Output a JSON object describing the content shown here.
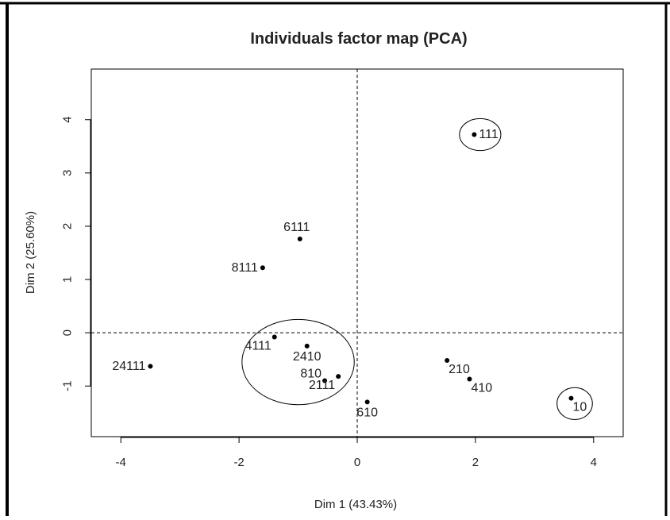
{
  "chart_data": {
    "type": "scatter",
    "title": "Individuals factor map (PCA)",
    "xlabel": "Dim 1 (43.43%)",
    "ylabel": "Dim 2 (25.60%)",
    "xlim": [
      -4.5,
      4.5
    ],
    "ylim": [
      -1.95,
      4.95
    ],
    "xticks": [
      -4,
      -2,
      0,
      2,
      4
    ],
    "yticks": [
      -1,
      0,
      1,
      2,
      3,
      4
    ],
    "grid": false,
    "reference_lines": {
      "x": 0,
      "y": 0,
      "style": "dashed"
    },
    "points": [
      {
        "label": "111",
        "x": 1.98,
        "y": 3.72,
        "label_pos": "right"
      },
      {
        "label": "6111",
        "x": -0.97,
        "y": 1.76,
        "label_pos": "above"
      },
      {
        "label": "8111",
        "x": -1.6,
        "y": 1.22,
        "label_pos": "left"
      },
      {
        "label": "4111",
        "x": -1.4,
        "y": -0.08,
        "label_pos": "below-left"
      },
      {
        "label": "2410",
        "x": -0.85,
        "y": -0.25,
        "label_pos": "below"
      },
      {
        "label": "810",
        "x": -0.55,
        "y": -0.9,
        "label_pos": "above-left"
      },
      {
        "label": "2111",
        "x": -0.32,
        "y": -0.82,
        "label_pos": "below-left"
      },
      {
        "label": "610",
        "x": 0.17,
        "y": -1.3,
        "label_pos": "below"
      },
      {
        "label": "210",
        "x": 1.52,
        "y": -0.52,
        "label_pos": "below-right"
      },
      {
        "label": "410",
        "x": 1.9,
        "y": -0.87,
        "label_pos": "below-right"
      },
      {
        "label": "24111",
        "x": -3.5,
        "y": -0.63,
        "label_pos": "left"
      },
      {
        "label": "10",
        "x": 3.62,
        "y": -1.23,
        "label_pos": "below-right"
      }
    ],
    "highlight_ellipses": [
      {
        "cx": -1.0,
        "cy": -0.55,
        "rx": 0.95,
        "ry": 0.8
      },
      {
        "cx": 2.08,
        "cy": 3.72,
        "rx": 0.35,
        "ry": 0.3
      },
      {
        "cx": 3.68,
        "cy": -1.33,
        "rx": 0.3,
        "ry": 0.3
      }
    ]
  }
}
